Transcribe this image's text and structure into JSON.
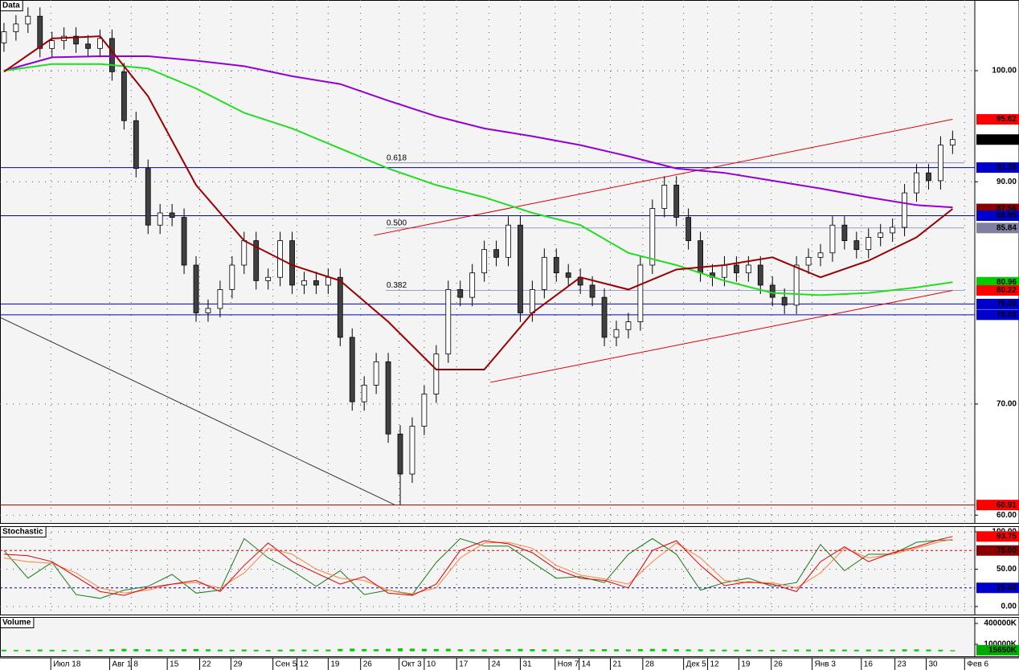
{
  "chart_data": [
    {
      "type": "candlestick",
      "title": "Data",
      "xlim": [
        -0.33,
        80.85
      ],
      "xticks": [
        {
          "value": 3.9,
          "label": "Июл 18"
        },
        {
          "value": 8.8,
          "label": "Авг 1"
        },
        {
          "value": 10.6,
          "label": "8"
        },
        {
          "value": 13.6,
          "label": "15"
        },
        {
          "value": 16.3,
          "label": "22"
        },
        {
          "value": 18.9,
          "label": "29"
        },
        {
          "value": 22.4,
          "label": "Сен 5"
        },
        {
          "value": 24.4,
          "label": "12"
        },
        {
          "value": 27.0,
          "label": "19"
        },
        {
          "value": 29.7,
          "label": "26"
        },
        {
          "value": 32.9,
          "label": "Окт 3"
        },
        {
          "value": 35.0,
          "label": "10"
        },
        {
          "value": 37.7,
          "label": "17"
        },
        {
          "value": 40.4,
          "label": "24"
        },
        {
          "value": 43.0,
          "label": "31"
        },
        {
          "value": 45.9,
          "label": "Ноя 7"
        },
        {
          "value": 47.9,
          "label": "14"
        },
        {
          "value": 50.5,
          "label": "21"
        },
        {
          "value": 53.2,
          "label": "28"
        },
        {
          "value": 56.6,
          "label": "Дек 5"
        },
        {
          "value": 58.6,
          "label": "12"
        },
        {
          "value": 61.2,
          "label": "19"
        },
        {
          "value": 63.9,
          "label": "26"
        },
        {
          "value": 67.3,
          "label": "Янв 3"
        },
        {
          "value": 71.4,
          "label": "16"
        },
        {
          "value": 74.2,
          "label": "23"
        },
        {
          "value": 76.8,
          "label": "30"
        },
        {
          "value": 80.0,
          "label": "Фев 6"
        }
      ],
      "ylim": [
        59.22,
        106.36
      ],
      "yticks": [
        {
          "value": 60,
          "label": "60.00"
        },
        {
          "value": 70,
          "label": "70.00"
        },
        {
          "value": 90,
          "label": "90.00"
        },
        {
          "value": 100,
          "label": "100.00"
        }
      ],
      "grid": true,
      "up_color": "#ffffff",
      "down_color": "#404040",
      "open": [
        102.5,
        103.5,
        104.2,
        104.9,
        102.0,
        102.7,
        103.1,
        102.4,
        102.0,
        102.9,
        99.9,
        95.5,
        91.2,
        86.1,
        87.2,
        86.8,
        82.5,
        78.2,
        78.6,
        80.3,
        82.5,
        84.7,
        81.1,
        81.4,
        84.7,
        80.7,
        81.1,
        80.7,
        81.4,
        76.0,
        70.2,
        71.7,
        73.8,
        67.3,
        63.7,
        68.0,
        70.9,
        74.5,
        80.3,
        79.6,
        81.8,
        83.9,
        83.2,
        86.1,
        78.2,
        80.3,
        83.2,
        81.8,
        81.4,
        80.7,
        79.6,
        76.0,
        76.7,
        77.4,
        82.5,
        87.6,
        89.7,
        86.8,
        84.7,
        81.8,
        81.4,
        82.5,
        81.8,
        82.5,
        80.7,
        79.6,
        78.9,
        82.5,
        83.2,
        83.6,
        86.1,
        84.7,
        83.9,
        85.0,
        85.4,
        85.9,
        89.0,
        90.8,
        90.1,
        93.3
      ],
      "high": [
        104.3,
        105.0,
        105.7,
        105.7,
        103.5,
        103.9,
        103.9,
        103.2,
        103.7,
        103.7,
        100.7,
        96.3,
        92.0,
        88.0,
        88.0,
        87.6,
        83.3,
        79.4,
        81.1,
        83.3,
        85.5,
        85.5,
        82.2,
        85.5,
        85.5,
        81.9,
        81.9,
        82.2,
        82.2,
        76.8,
        72.5,
        74.6,
        74.6,
        68.1,
        68.8,
        71.7,
        75.3,
        81.1,
        81.1,
        82.6,
        84.7,
        84.7,
        86.9,
        86.9,
        81.1,
        84.0,
        84.0,
        82.6,
        82.2,
        81.5,
        80.4,
        77.5,
        78.2,
        83.3,
        88.4,
        90.5,
        90.5,
        87.6,
        85.5,
        82.6,
        83.3,
        83.3,
        83.3,
        83.3,
        81.5,
        80.4,
        83.3,
        84.0,
        84.4,
        86.9,
        86.9,
        85.5,
        85.8,
        86.2,
        86.7,
        89.8,
        91.6,
        91.6,
        94.1,
        94.6
      ],
      "low": [
        101.7,
        102.7,
        103.4,
        101.2,
        101.2,
        101.9,
        101.6,
        101.2,
        101.2,
        99.1,
        94.7,
        90.4,
        85.3,
        85.3,
        86.0,
        81.7,
        77.4,
        77.4,
        77.8,
        79.5,
        81.7,
        80.3,
        80.3,
        80.6,
        79.9,
        79.9,
        79.9,
        79.9,
        75.2,
        69.4,
        69.4,
        70.9,
        66.5,
        60.91,
        62.9,
        67.2,
        70.1,
        73.7,
        78.8,
        78.8,
        81.0,
        82.4,
        82.4,
        77.4,
        77.4,
        79.5,
        81.0,
        80.6,
        79.9,
        78.8,
        75.2,
        75.2,
        75.9,
        76.6,
        81.7,
        86.8,
        86.0,
        83.9,
        81.0,
        80.6,
        80.6,
        81.0,
        81.0,
        79.9,
        78.8,
        78.1,
        78.1,
        81.7,
        82.4,
        82.8,
        83.9,
        83.1,
        83.1,
        84.2,
        84.6,
        85.1,
        88.2,
        89.3,
        89.3,
        92.5
      ],
      "close": [
        103.5,
        104.2,
        104.9,
        102.0,
        102.7,
        103.1,
        102.4,
        102.0,
        102.9,
        99.9,
        95.5,
        91.2,
        86.1,
        87.2,
        86.8,
        82.5,
        78.2,
        78.6,
        80.3,
        82.5,
        84.7,
        81.1,
        81.4,
        84.7,
        80.7,
        81.1,
        80.7,
        81.4,
        76.0,
        70.2,
        71.7,
        73.8,
        67.3,
        63.7,
        68.0,
        70.9,
        74.5,
        80.3,
        79.6,
        81.8,
        83.9,
        83.2,
        86.1,
        78.2,
        80.3,
        83.2,
        81.8,
        81.4,
        80.7,
        79.6,
        76.0,
        76.7,
        77.4,
        82.5,
        87.6,
        89.7,
        86.8,
        84.7,
        81.8,
        81.4,
        82.5,
        81.8,
        82.5,
        80.7,
        79.6,
        78.9,
        82.5,
        83.2,
        83.6,
        86.1,
        84.7,
        83.9,
        85.0,
        85.4,
        85.9,
        89.0,
        90.8,
        90.1,
        93.3,
        93.8
      ],
      "lines": [
        {
          "color": "#9400d3",
          "x": [
            0,
            4,
            8,
            12,
            16,
            20,
            24,
            28,
            32,
            36,
            40,
            44,
            48,
            52,
            56,
            60,
            64,
            68,
            72,
            76,
            79
          ],
          "values": [
            100.0,
            101.2,
            101.3,
            101.3,
            100.9,
            100.4,
            99.5,
            98.8,
            97.3,
            95.9,
            94.8,
            94.1,
            93.3,
            92.3,
            91.2,
            90.8,
            90.1,
            89.4,
            88.6,
            87.9,
            87.7
          ]
        },
        {
          "color": "#22dd22",
          "x": [
            0,
            4,
            8,
            12,
            16,
            20,
            24,
            28,
            32,
            36,
            40,
            44,
            48,
            52,
            56,
            60,
            64,
            68,
            72,
            76,
            79
          ],
          "values": [
            100.0,
            100.6,
            100.6,
            100.2,
            98.4,
            96.2,
            94.8,
            93.0,
            91.2,
            89.7,
            88.6,
            87.2,
            86.1,
            83.6,
            82.5,
            81.1,
            80.0,
            79.8,
            80.0,
            80.5,
            80.96
          ]
        },
        {
          "color": "#9b0000",
          "x": [
            0,
            4,
            8,
            12,
            16,
            20,
            24,
            28,
            32,
            36,
            40,
            44,
            48,
            52,
            56,
            60,
            64,
            68,
            72,
            76,
            79
          ],
          "values": [
            99.9,
            102.9,
            103.1,
            97.7,
            89.7,
            84.7,
            82.5,
            81.1,
            77.4,
            73.1,
            73.1,
            78.2,
            81.4,
            80.3,
            82.1,
            82.5,
            83.2,
            81.4,
            82.9,
            85.0,
            87.56
          ]
        }
      ],
      "hlines": [
        {
          "value": 91.28,
          "color": "#0000cc"
        },
        {
          "value": 86.95,
          "color": "#0000cc"
        },
        {
          "value": 79.0,
          "color": "#0000cc"
        },
        {
          "value": 78.03,
          "color": "#0000cc"
        },
        {
          "value": 60.91,
          "color": "#9b0000"
        }
      ],
      "fib": [
        {
          "value": 91.7,
          "label": "0.618"
        },
        {
          "value": 85.84,
          "label": "0.500"
        },
        {
          "value": 80.22,
          "label": "0.382"
        }
      ],
      "trendlines": [
        {
          "x": [
            30.8,
            79
          ],
          "y": [
            85.18,
            95.62
          ],
          "color": "#dd0000"
        },
        {
          "x": [
            40.5,
            79
          ],
          "y": [
            71.95,
            80.22
          ],
          "color": "#dd0000"
        },
        {
          "x": [
            -0.33,
            32.5
          ],
          "y": [
            77.8,
            60.95
          ],
          "color": "#333333"
        }
      ],
      "markers": [
        {
          "value": 95.62,
          "label": "95.62",
          "color": "#ff0000"
        },
        {
          "value": 93.8,
          "label": "93.80",
          "color": "#000000"
        },
        {
          "value": 91.28,
          "label": "91.28",
          "color": "#0000cc"
        },
        {
          "value": 87.56,
          "label": "87.56",
          "color": "#8b0000"
        },
        {
          "value": 86.95,
          "label": "86.95",
          "color": "#0000cc"
        },
        {
          "value": 85.84,
          "label": "85.84",
          "color": "#7f7fa0"
        },
        {
          "value": 80.96,
          "label": "80.96",
          "color": "#00cc00"
        },
        {
          "value": 80.22,
          "label": "80.22",
          "color": "#ff0000"
        },
        {
          "value": 79.0,
          "label": "79.00",
          "color": "#0000cc"
        },
        {
          "value": 78.03,
          "label": "78.03",
          "color": "#0000cc"
        },
        {
          "value": 60.91,
          "label": "60.91",
          "color": "#ff0000"
        }
      ]
    },
    {
      "type": "line",
      "title": "Stochastic",
      "ylim": [
        -11.8,
        107.5
      ],
      "yticks": [
        {
          "value": 0,
          "label": "0.00"
        },
        {
          "value": 50,
          "label": "50.00"
        },
        {
          "value": 100,
          "label": "100.00"
        }
      ],
      "grid": true,
      "series": [
        {
          "color": "#1a7a1a",
          "x": [
            0,
            2,
            4,
            6,
            8,
            10,
            12,
            14,
            16,
            18,
            20,
            22,
            24,
            26,
            28,
            30,
            32,
            34,
            36,
            38,
            40,
            42,
            44,
            46,
            48,
            50,
            52,
            54,
            56,
            58,
            60,
            62,
            64,
            66,
            68,
            70,
            72,
            74,
            76,
            78,
            79
          ],
          "values": [
            75,
            38,
            59,
            16,
            11,
            22,
            27,
            43,
            18,
            22,
            91,
            65,
            48,
            27,
            48,
            16,
            22,
            16,
            59,
            91,
            81,
            81,
            59,
            38,
            40,
            32,
            70,
            91,
            70,
            22,
            32,
            38,
            27,
            32,
            83,
            48,
            70,
            70,
            86,
            89,
            89
          ]
        },
        {
          "color": "#ff8040",
          "x": [
            0,
            2,
            4,
            6,
            8,
            10,
            12,
            14,
            16,
            18,
            20,
            22,
            24,
            26,
            28,
            30,
            32,
            34,
            36,
            38,
            40,
            42,
            44,
            46,
            48,
            50,
            52,
            54,
            56,
            58,
            60,
            62,
            64,
            66,
            68,
            70,
            72,
            74,
            76,
            78,
            79
          ],
          "values": [
            65,
            60,
            58,
            45,
            25,
            18,
            22,
            30,
            32,
            25,
            45,
            78,
            70,
            50,
            38,
            35,
            22,
            17,
            25,
            65,
            85,
            86,
            78,
            55,
            42,
            37,
            30,
            60,
            85,
            65,
            35,
            32,
            32,
            25,
            45,
            78,
            65,
            70,
            78,
            87,
            90
          ]
        },
        {
          "color": "#e00000",
          "x": [
            0,
            2,
            4,
            6,
            8,
            10,
            12,
            14,
            16,
            18,
            20,
            22,
            24,
            26,
            28,
            30,
            32,
            34,
            36,
            38,
            40,
            42,
            44,
            46,
            48,
            50,
            52,
            54,
            56,
            58,
            60,
            62,
            64,
            66,
            68,
            70,
            72,
            74,
            76,
            78,
            79
          ],
          "values": [
            70,
            68,
            60,
            40,
            20,
            15,
            25,
            30,
            35,
            20,
            55,
            85,
            60,
            45,
            30,
            40,
            18,
            15,
            30,
            75,
            88,
            84,
            72,
            50,
            38,
            35,
            25,
            75,
            88,
            55,
            28,
            33,
            30,
            20,
            60,
            80,
            60,
            72,
            80,
            90,
            93.75
          ]
        }
      ],
      "levels": [
        {
          "value": 75,
          "color": "#cc0000"
        },
        {
          "value": 25,
          "color": "#0000cc"
        }
      ],
      "markers": [
        {
          "value": 93.75,
          "label": "93.75",
          "color": "#ff0000"
        },
        {
          "value": 75.0,
          "label": "75.00",
          "color": "#8b0000"
        },
        {
          "value": 25.0,
          "label": "25.00",
          "color": "#0000cc"
        }
      ]
    },
    {
      "type": "bar",
      "title": "Volume",
      "ylim": [
        -84200,
        492700
      ],
      "yticks": [
        {
          "value": 100000,
          "label": "100000K"
        },
        {
          "value": 400000,
          "label": "400000K"
        }
      ],
      "grid": false,
      "color": "#00cc00",
      "values": [
        22000,
        18000,
        20000,
        25000,
        21000,
        19000,
        17000,
        20000,
        24000,
        30000,
        35000,
        32000,
        28000,
        26000,
        25000,
        30000,
        33000,
        28000,
        24000,
        22000,
        25000,
        21000,
        20000,
        23000,
        26000,
        24000,
        22000,
        25000,
        34000,
        38000,
        33000,
        30000,
        36000,
        42000,
        38000,
        35000,
        33000,
        36000,
        30000,
        28000,
        26000,
        27000,
        30000,
        34000,
        31000,
        28000,
        26000,
        24000,
        25000,
        27000,
        30000,
        28000,
        26000,
        32000,
        35000,
        33000,
        30000,
        27000,
        28000,
        25000,
        23000,
        22000,
        24000,
        21000,
        20000,
        18000,
        24000,
        25000,
        23000,
        26000,
        24000,
        22000,
        25000,
        23000,
        24000,
        28000,
        27000,
        25000,
        22000,
        15650
      ],
      "markers": [
        {
          "value": 15650,
          "label": "15650K",
          "color": "#00aa00"
        }
      ]
    }
  ]
}
